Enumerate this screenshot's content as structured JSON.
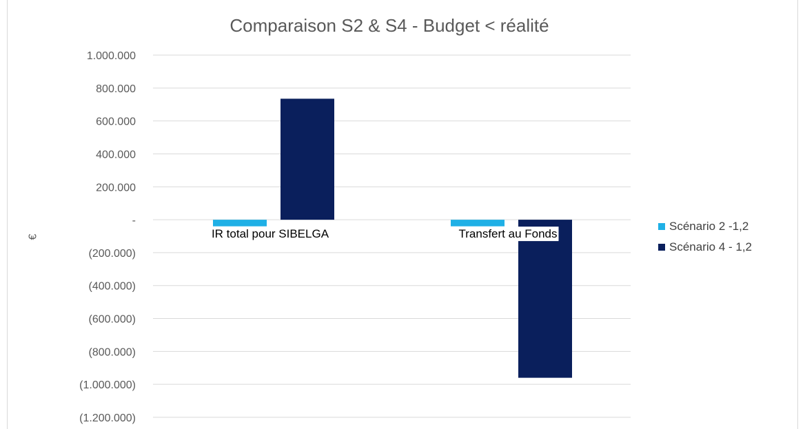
{
  "chart_data": {
    "type": "bar",
    "title": "Comparaison S2 & S4 - Budget < réalité",
    "ylabel": "€",
    "xlabel": "",
    "categories": [
      "IR total pour SIBELGA",
      "Transfert au Fonds"
    ],
    "series": [
      {
        "name": "Scénario 2 -1,2",
        "values": [
          -40000,
          -40000
        ],
        "color": "#1fb0e6"
      },
      {
        "name": "Scénario 4 - 1,2",
        "values": [
          735000,
          -960000
        ],
        "color": "#0a1f5c"
      }
    ],
    "ylim": [
      -1200000,
      1000000
    ],
    "yticks": [
      1000000,
      800000,
      600000,
      400000,
      200000,
      0,
      -200000,
      -400000,
      -600000,
      -800000,
      -1000000,
      -1200000
    ],
    "ytick_labels": [
      "1.000.000",
      "800.000",
      "600.000",
      "400.000",
      "200.000",
      "-",
      "(200.000)",
      "(400.000)",
      "(600.000)",
      "(800.000)",
      "(1.000.000)",
      "(1.200.000)"
    ],
    "grid": true,
    "legend_position": "right"
  }
}
